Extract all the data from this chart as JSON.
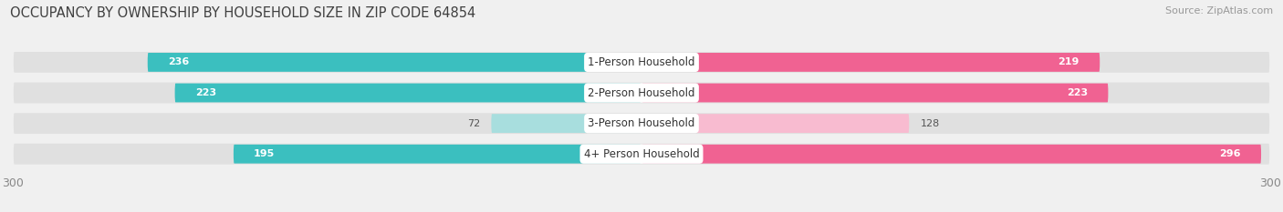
{
  "title": "OCCUPANCY BY OWNERSHIP BY HOUSEHOLD SIZE IN ZIP CODE 64854",
  "source": "Source: ZipAtlas.com",
  "categories": [
    "1-Person Household",
    "2-Person Household",
    "3-Person Household",
    "4+ Person Household"
  ],
  "owner_values": [
    236,
    223,
    72,
    195
  ],
  "renter_values": [
    219,
    223,
    128,
    296
  ],
  "owner_color_dark": "#3bbfbf",
  "owner_color_light": "#a8dede",
  "renter_color_dark": "#f06292",
  "renter_color_light": "#f8bbd0",
  "axis_max": 300,
  "bg_color": "#f0f0f0",
  "row_bg_color": "#e0e0e0",
  "title_fontsize": 10.5,
  "source_fontsize": 8,
  "label_fontsize": 8.5,
  "value_fontsize": 8,
  "tick_fontsize": 9,
  "legend_fontsize": 8.5
}
